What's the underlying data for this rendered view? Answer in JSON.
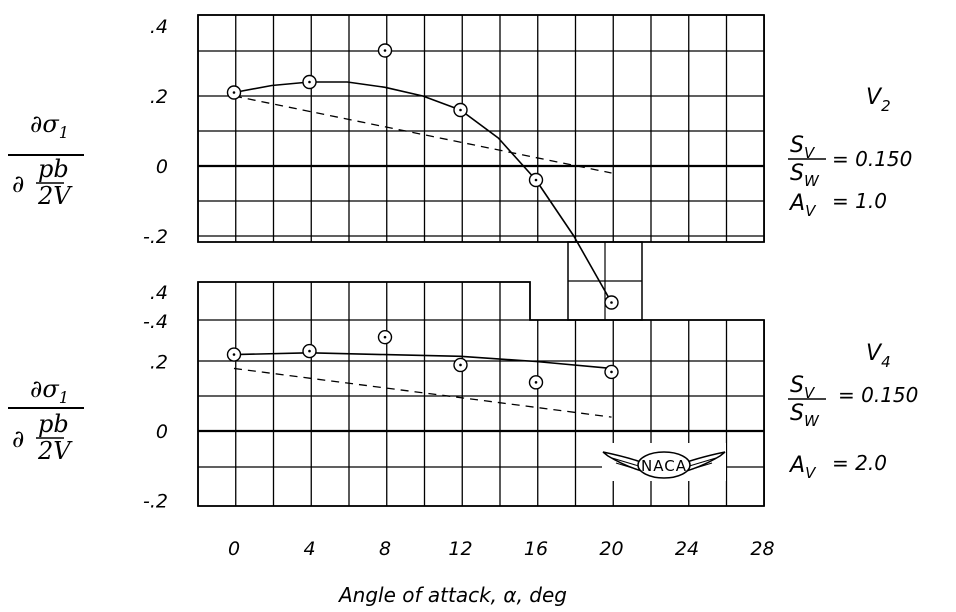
{
  "chart_data": [
    {
      "type": "line",
      "panel": "top",
      "x": [
        0,
        4,
        8,
        12,
        16,
        20
      ],
      "series": [
        {
          "style": "points",
          "values": [
            0.21,
            0.24,
            0.33,
            0.16,
            -0.04,
            -0.39
          ]
        },
        {
          "style": "fairing-solid",
          "x": [
            0,
            2,
            4,
            6,
            8,
            10,
            12,
            14,
            16,
            18,
            20
          ],
          "values": [
            0.21,
            0.23,
            0.24,
            0.24,
            0.225,
            0.2,
            0.16,
            0.08,
            -0.04,
            -0.2,
            -0.39
          ]
        },
        {
          "style": "dashed",
          "x": [
            0,
            20
          ],
          "values": [
            0.2,
            -0.02
          ]
        }
      ],
      "ylabel": "∂σ₁ / ∂(pb/2V)",
      "yticks": [
        ".4",
        ".2",
        "0",
        "-.2"
      ],
      "ylim": [
        -0.2,
        0.4
      ],
      "grid": true,
      "legend": {
        "name": "V",
        "name_sub": "2",
        "ratio_num": "S",
        "ratio_num_sub": "V",
        "ratio_den": "S",
        "ratio_den_sub": "W",
        "ratio_value": "= 0.150",
        "aspect": "A",
        "aspect_sub": "V",
        "aspect_value": "= 1.0"
      }
    },
    {
      "type": "line",
      "panel": "bottom",
      "x": [
        0,
        4,
        8,
        12,
        16,
        20
      ],
      "series": [
        {
          "style": "points",
          "values": [
            0.22,
            0.23,
            0.27,
            0.19,
            0.14,
            0.17
          ]
        },
        {
          "style": "fairing-solid",
          "x": [
            0,
            4,
            8,
            12,
            16,
            20
          ],
          "values": [
            0.22,
            0.225,
            0.22,
            0.215,
            0.2,
            0.18
          ]
        },
        {
          "style": "dashed",
          "x": [
            0,
            20
          ],
          "values": [
            0.18,
            0.04
          ]
        }
      ],
      "ylabel": "∂σ₁ / ∂(pb/2V)",
      "yticks": [
        ".4",
        ".2",
        "0",
        "-.2"
      ],
      "ylim": [
        -0.2,
        0.4
      ],
      "grid": true,
      "legend": {
        "name": "V",
        "name_sub": "4",
        "ratio_num": "S",
        "ratio_num_sub": "V",
        "ratio_den": "S",
        "ratio_den_sub": "W",
        "ratio_value": "= 0.150",
        "aspect": "A",
        "aspect_sub": "V",
        "aspect_value": "= 2.0"
      }
    }
  ],
  "xaxis": {
    "ticks": [
      "0",
      "4",
      "8",
      "12",
      "16",
      "20",
      "24",
      "28"
    ],
    "label": "Angle of attack, α, deg"
  },
  "overlap_tick": "-.4",
  "ylabel_parts": {
    "num": "∂σ",
    "num_sub": "1",
    "den_pre": "∂",
    "den_top": "pb",
    "den_bot": "2V"
  },
  "logo": {
    "text": "NACA"
  }
}
